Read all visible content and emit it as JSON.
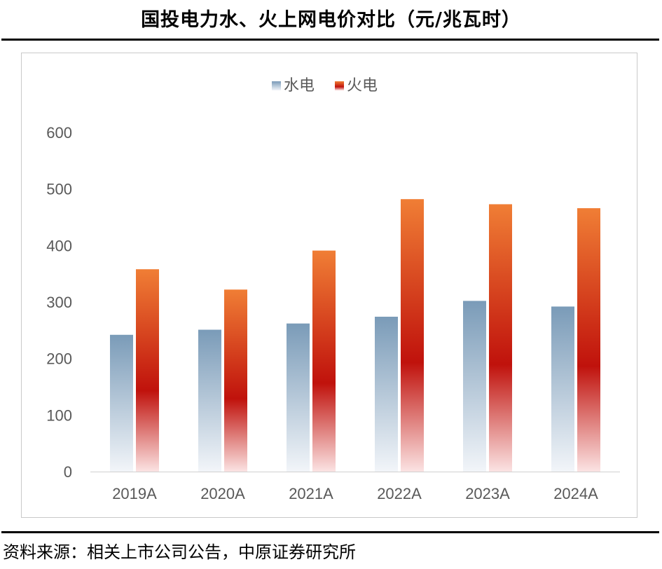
{
  "header": {
    "title": "国投电力水、火上网电价对比（元/兆瓦时）"
  },
  "footer": {
    "source": "资料来源：相关上市公司公告，中原证券研究所"
  },
  "chart_data": {
    "type": "bar",
    "title": "",
    "xlabel": "",
    "ylabel": "",
    "categories": [
      "2019A",
      "2020A",
      "2021A",
      "2022A",
      "2023A",
      "2024A"
    ],
    "series": [
      {
        "name": "水电",
        "values": [
          242,
          251,
          262,
          274,
          302,
          292
        ],
        "color_top": "#7a9bb8",
        "color_bottom": "#f2f5f9"
      },
      {
        "name": "火电",
        "values": [
          358,
          322,
          391,
          482,
          473,
          466
        ],
        "color_top": "#f07e35",
        "color_mid": "#c0120c",
        "color_bottom": "#fbe3e3"
      }
    ],
    "ylim": [
      0,
      600
    ],
    "yticks": [
      0,
      100,
      200,
      300,
      400,
      500,
      600
    ],
    "grid": false,
    "legend": "top-center"
  }
}
